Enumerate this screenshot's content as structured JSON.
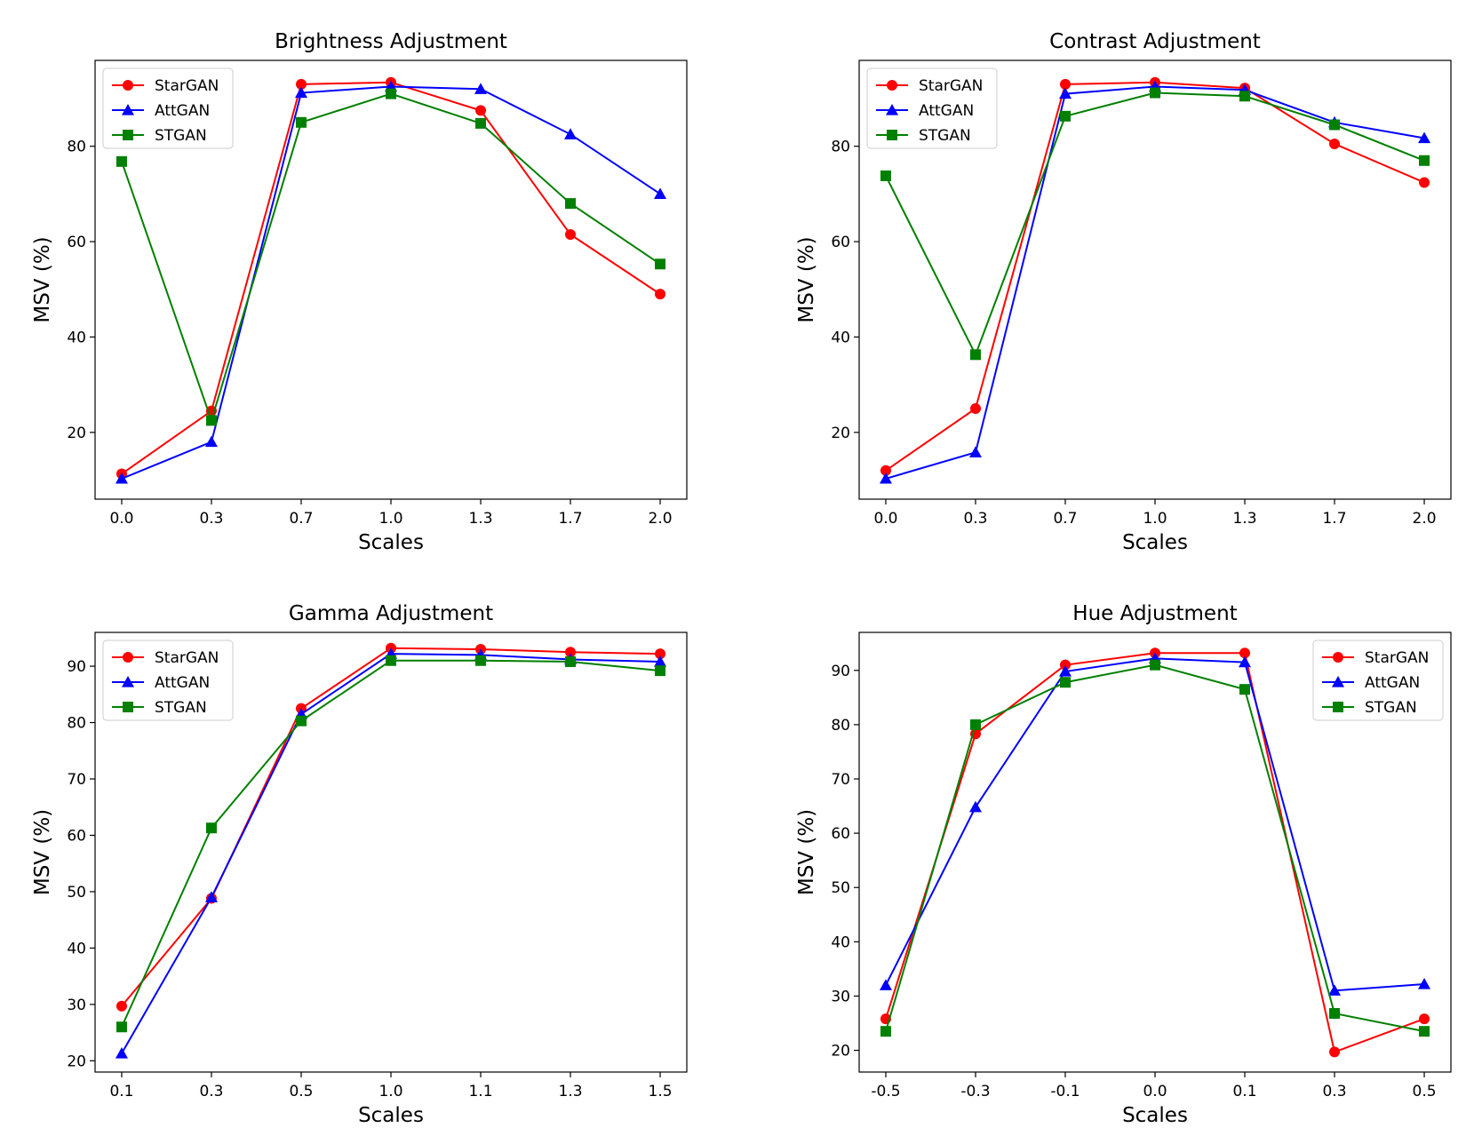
{
  "figure": {
    "series_names": [
      "StarGAN",
      "AttGAN",
      "STGAN"
    ],
    "series_colors": [
      "#ff0000",
      "#0000ff",
      "#008000"
    ],
    "series_markers": [
      "circle",
      "triangle",
      "square"
    ]
  },
  "chart_data": [
    {
      "type": "line",
      "title": "Brightness Adjustment",
      "xlabel": "Scales",
      "ylabel": "MSV (%)",
      "categories": [
        "0.0",
        "0.3",
        "0.7",
        "1.0",
        "1.3",
        "1.7",
        "2.0"
      ],
      "yticks": [
        "20",
        "40",
        "60",
        "80"
      ],
      "ylim": [
        6,
        98
      ],
      "legend_position": "upper-left",
      "grid": false,
      "series": [
        {
          "name": "StarGAN",
          "values": [
            11.3,
            24.5,
            93.0,
            93.4,
            87.5,
            61.5,
            49.0
          ]
        },
        {
          "name": "AttGAN",
          "values": [
            10.3,
            18.0,
            91.2,
            92.5,
            92.0,
            82.5,
            70.0
          ]
        },
        {
          "name": "STGAN",
          "values": [
            76.8,
            22.5,
            85.0,
            91.0,
            84.8,
            68.0,
            55.3
          ]
        }
      ]
    },
    {
      "type": "line",
      "title": "Contrast Adjustment",
      "xlabel": "Scales",
      "ylabel": "MSV (%)",
      "categories": [
        "0.0",
        "0.3",
        "0.7",
        "1.0",
        "1.3",
        "1.7",
        "2.0"
      ],
      "yticks": [
        "20",
        "40",
        "60",
        "80"
      ],
      "ylim": [
        6,
        98
      ],
      "legend_position": "upper-left",
      "grid": false,
      "series": [
        {
          "name": "StarGAN",
          "values": [
            12.0,
            25.0,
            93.0,
            93.4,
            92.2,
            80.5,
            72.4
          ]
        },
        {
          "name": "AttGAN",
          "values": [
            10.3,
            15.8,
            91.0,
            92.5,
            91.8,
            85.0,
            81.7
          ]
        },
        {
          "name": "STGAN",
          "values": [
            73.8,
            36.3,
            86.3,
            91.2,
            90.5,
            84.5,
            77.0
          ]
        }
      ]
    },
    {
      "type": "line",
      "title": "Gamma Adjustment",
      "xlabel": "Scales",
      "ylabel": "MSV (%)",
      "categories": [
        "0.1",
        "0.3",
        "0.5",
        "1.0",
        "1.1",
        "1.3",
        "1.5"
      ],
      "yticks": [
        "20",
        "30",
        "40",
        "50",
        "60",
        "70",
        "80",
        "90"
      ],
      "ylim": [
        18,
        96
      ],
      "legend_position": "upper-left",
      "grid": false,
      "series": [
        {
          "name": "StarGAN",
          "values": [
            29.7,
            48.8,
            82.5,
            93.2,
            93.0,
            92.5,
            92.2
          ]
        },
        {
          "name": "AttGAN",
          "values": [
            21.3,
            49.0,
            81.5,
            92.2,
            92.0,
            91.2,
            90.8
          ]
        },
        {
          "name": "STGAN",
          "values": [
            26.0,
            61.3,
            80.3,
            91.0,
            91.0,
            90.8,
            89.2
          ]
        }
      ]
    },
    {
      "type": "line",
      "title": "Hue Adjustment",
      "xlabel": "Scales",
      "ylabel": "MSV (%)",
      "categories": [
        "-0.5",
        "-0.3",
        "-0.1",
        "0.0",
        "0.1",
        "0.3",
        "0.5"
      ],
      "yticks": [
        "20",
        "30",
        "40",
        "50",
        "60",
        "70",
        "80",
        "90"
      ],
      "ylim": [
        16,
        97
      ],
      "legend_position": "upper-right",
      "grid": false,
      "series": [
        {
          "name": "StarGAN",
          "values": [
            25.8,
            78.3,
            91.0,
            93.2,
            93.2,
            19.7,
            25.8
          ]
        },
        {
          "name": "AttGAN",
          "values": [
            32.0,
            64.8,
            89.8,
            92.2,
            91.5,
            31.0,
            32.2
          ]
        },
        {
          "name": "STGAN",
          "values": [
            23.5,
            80.0,
            87.8,
            91.0,
            86.5,
            26.8,
            23.5
          ]
        }
      ]
    }
  ]
}
